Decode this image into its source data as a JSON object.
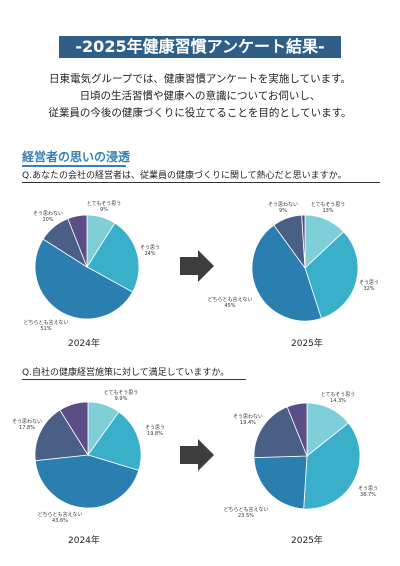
{
  "title": "-2025年健康習慣アンケート結果-",
  "intro": [
    "日東電気グループでは、健康習慣アンケートを実施しています。",
    "日頃の生活習慣や健康への意識についてお伺いし、",
    "従業員の今後の健康づくりに役立てることを目的としています。"
  ],
  "section": {
    "title": "経営者の思いの浸透"
  },
  "colors": {
    "banner": "#2f5f86",
    "section": "#3b7fb3",
    "arrow": "#3d3d3d"
  },
  "icons": {
    "arrow": "right-arrow-icon"
  },
  "chart_data": [
    {
      "type": "pie",
      "title": "Q.あなたの会社の経営者は、従業員の健康づくりに関して熱心だと思いますか。",
      "year_label": "2024年",
      "labels": [
        "とてもそう思う",
        "そう思う",
        "どちらとも言えない",
        "そう思わない"
      ],
      "values": [
        9,
        24,
        51,
        10
      ],
      "value_labels": [
        "9%",
        "24%",
        "51%",
        "10%"
      ],
      "colors": [
        "#7ecfd8",
        "#3aafc9",
        "#2b7fb0",
        "#4a5f86"
      ],
      "extra_color": "#5b4e86"
    },
    {
      "type": "pie",
      "title": "Q.あなたの会社の経営者は、従業員の健康づくりに関して熱心だと思いますか。",
      "year_label": "2025年",
      "labels": [
        "とてもそう思う",
        "そう思う",
        "どちらとも言えない",
        "そう思わない"
      ],
      "values": [
        13,
        32,
        45,
        9
      ],
      "value_labels": [
        "13%",
        "32%",
        "45%",
        "9%"
      ],
      "colors": [
        "#7ecfd8",
        "#3aafc9",
        "#2b7fb0",
        "#4a5f86"
      ],
      "extra_color": "#5b4e86"
    },
    {
      "type": "pie",
      "title": "Q.自社の健康経営施策に対して満足していますか。",
      "year_label": "2024年",
      "labels": [
        "とてもそう思う",
        "そう思う",
        "どちらとも言えない",
        "そう思わない"
      ],
      "values": [
        9.9,
        19.8,
        43.6,
        17.8
      ],
      "value_labels": [
        "9.9%",
        "19.8%",
        "43.6%",
        "17.8%"
      ],
      "colors": [
        "#7ecfd8",
        "#3aafc9",
        "#2b7fb0",
        "#4a5f86"
      ],
      "extra_color": "#5b4e86"
    },
    {
      "type": "pie",
      "title": "Q.自社の健康経営施策に対して満足していますか。",
      "year_label": "2025年",
      "labels": [
        "とてもそう思う",
        "そう思う",
        "どちらとも言えない",
        "そう思わない"
      ],
      "values": [
        14.3,
        36.7,
        23.5,
        19.4
      ],
      "value_labels": [
        "14.3%",
        "36.7%",
        "23.5%",
        "19.4%"
      ],
      "colors": [
        "#7ecfd8",
        "#3aafc9",
        "#2b7fb0",
        "#4a5f86"
      ],
      "extra_color": "#5b4e86"
    }
  ]
}
